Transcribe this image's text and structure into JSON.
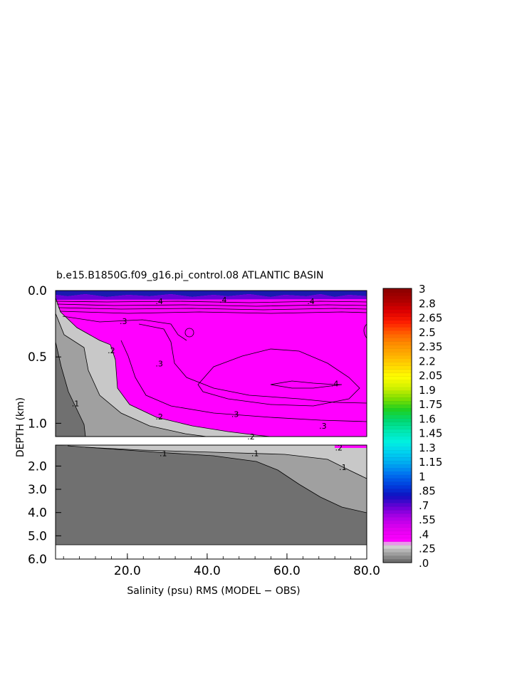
{
  "chart_data": {
    "type": "heatmap",
    "title": "b.e15.B1850G.f09_g16.pi_control.08 ATLANTIC BASIN",
    "xlabel": "Salinity (psu) RMS (MODEL − OBS)",
    "ylabel": "DEPTH (km)",
    "xlim": [
      2,
      80
    ],
    "x_ticks": [
      "20.0",
      "40.0",
      "60.0",
      "80.0"
    ],
    "y_ticks_upper": [
      "0.0",
      "0.5",
      "1.0"
    ],
    "y_ticks_lower": [
      "2.0",
      "3.0",
      "4.0",
      "5.0",
      "6.0"
    ],
    "ylim_upper": [
      0,
      1.1
    ],
    "ylim_lower": [
      1.1,
      6.0
    ],
    "colorbar_labels": [
      "3",
      "2.8",
      "2.65",
      "2.5",
      "2.35",
      "2.2",
      "2.05",
      "1.9",
      "1.75",
      "1.6",
      "1.45",
      "1.3",
      "1.15",
      "1",
      ".85",
      ".7",
      ".55",
      ".4",
      ".25",
      ".0"
    ],
    "contour_labels": [
      {
        "text": ".4",
        "x": 28,
        "depth": 0.08
      },
      {
        "text": ".4",
        "x": 44,
        "depth": 0.07
      },
      {
        "text": ".4",
        "x": 66,
        "depth": 0.08
      },
      {
        "text": ".3",
        "x": 19,
        "depth": 0.23
      },
      {
        "text": ".2",
        "x": 16,
        "depth": 0.45
      },
      {
        "text": ".3",
        "x": 28,
        "depth": 0.55
      },
      {
        "text": ".4",
        "x": 72,
        "depth": 0.7
      },
      {
        "text": ".1",
        "x": 7,
        "depth": 0.85
      },
      {
        "text": ".2",
        "x": 28,
        "depth": 0.95
      },
      {
        "text": ".3",
        "x": 47,
        "depth": 0.93
      },
      {
        "text": ".3",
        "x": 69,
        "depth": 1.02
      },
      {
        "text": ".2",
        "x": 51,
        "depth": 1.1
      },
      {
        "text": ".2",
        "x": 73,
        "depth": 1.2
      },
      {
        "text": ".1",
        "x": 29,
        "depth": 1.45
      },
      {
        "text": ".1",
        "x": 52,
        "depth": 1.45
      },
      {
        "text": ".1",
        "x": 74,
        "depth": 2.05
      }
    ]
  },
  "colors": {
    "magenta": "#ff00ff",
    "gray_dark": "#707070",
    "gray_mid": "#a0a0a0",
    "gray_light": "#c8c8c8",
    "deep_blue": "#0000a0"
  }
}
